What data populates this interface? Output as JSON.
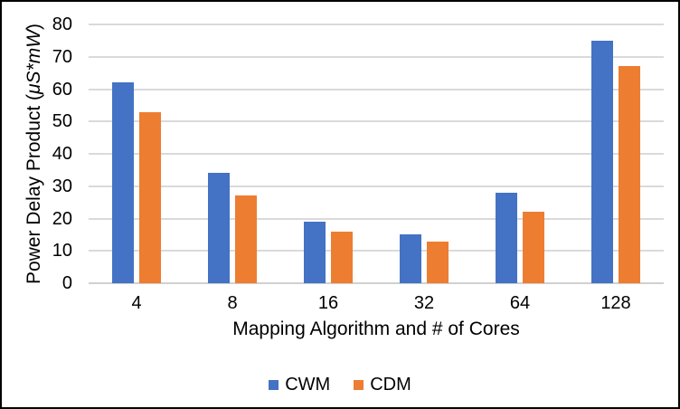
{
  "chart_data": {
    "type": "bar",
    "title": "",
    "categories": [
      "4",
      "8",
      "16",
      "32",
      "64",
      "128"
    ],
    "series": [
      {
        "name": "CWM",
        "color": "#4472C4",
        "values": [
          62,
          34,
          19,
          15,
          28,
          75
        ]
      },
      {
        "name": "CDM",
        "color": "#ED7D31",
        "values": [
          53,
          27,
          16,
          13,
          22,
          67
        ]
      }
    ],
    "xlabel": "Mapping Algorithm and # of Cores",
    "ylabel": "Power Delay Product (μS*mW)",
    "ylabel_parts": {
      "prefix": "Power Delay Product (",
      "italic": "μS*mW",
      "suffix": ")"
    },
    "ylim": [
      0,
      80
    ],
    "yticks": [
      0,
      10,
      20,
      30,
      40,
      50,
      60,
      70,
      80
    ],
    "grid": "horizontal",
    "legend_position": "bottom",
    "styles": {
      "gridline_color": "#DADADA",
      "axis_line_color": "#D0D0D0",
      "text_color": "#000000",
      "background": "#FFFFFF",
      "frame_border_color": "#000000",
      "bar_colors": [
        "#4472C4",
        "#ED7D31"
      ]
    }
  }
}
